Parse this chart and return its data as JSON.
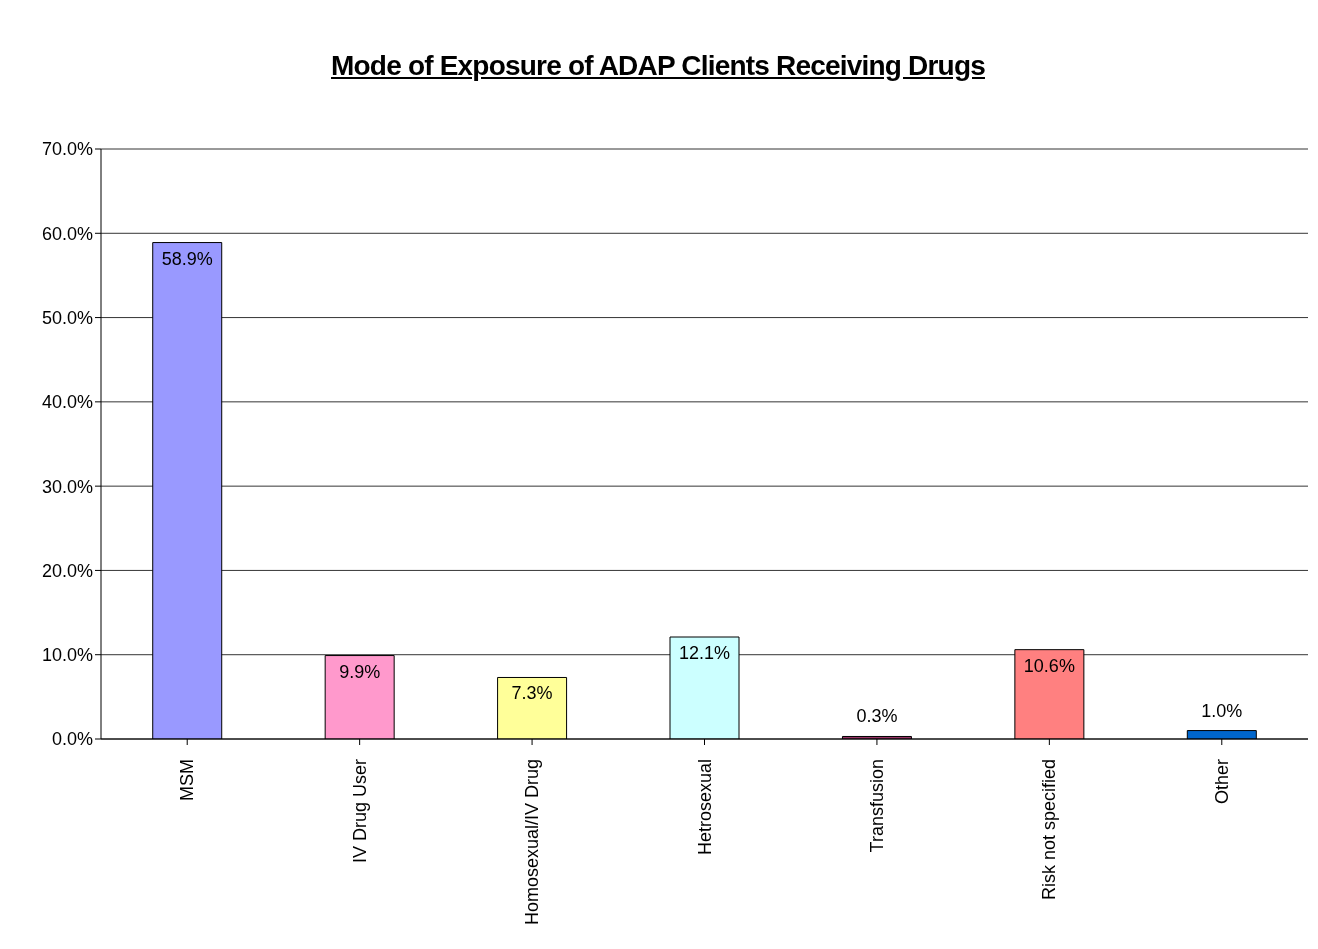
{
  "chart_data": {
    "type": "bar",
    "title": "Mode of Exposure of ADAP Clients Receiving Drugs",
    "categories": [
      "MSM",
      "IV Drug User",
      "Homosexual/IV Drug",
      "Hetrosexual",
      "Transfusion",
      "Risk not specified",
      "Other"
    ],
    "values": [
      58.9,
      9.9,
      7.3,
      12.1,
      0.3,
      10.6,
      1.0
    ],
    "colors": [
      "#9999ff",
      "#ff99cc",
      "#ffff99",
      "#ccffff",
      "#993366",
      "#ff8080",
      "#0066cc"
    ],
    "value_labels": [
      "58.9%",
      "9.9%",
      "7.3%",
      "12.1%",
      "0.3%",
      "10.6%",
      "1.0%"
    ],
    "ylim": [
      0,
      70
    ],
    "yticks": [
      {
        "value": 0,
        "label": "0.0%"
      },
      {
        "value": 10,
        "label": "10.0%"
      },
      {
        "value": 20,
        "label": "20.0%"
      },
      {
        "value": 30,
        "label": "30.0%"
      },
      {
        "value": 40,
        "label": "40.0%"
      },
      {
        "value": 50,
        "label": "50.0%"
      },
      {
        "value": 60,
        "label": "60.0%"
      },
      {
        "value": 70,
        "label": "70.0%"
      }
    ],
    "grid": "y",
    "legend": false
  }
}
